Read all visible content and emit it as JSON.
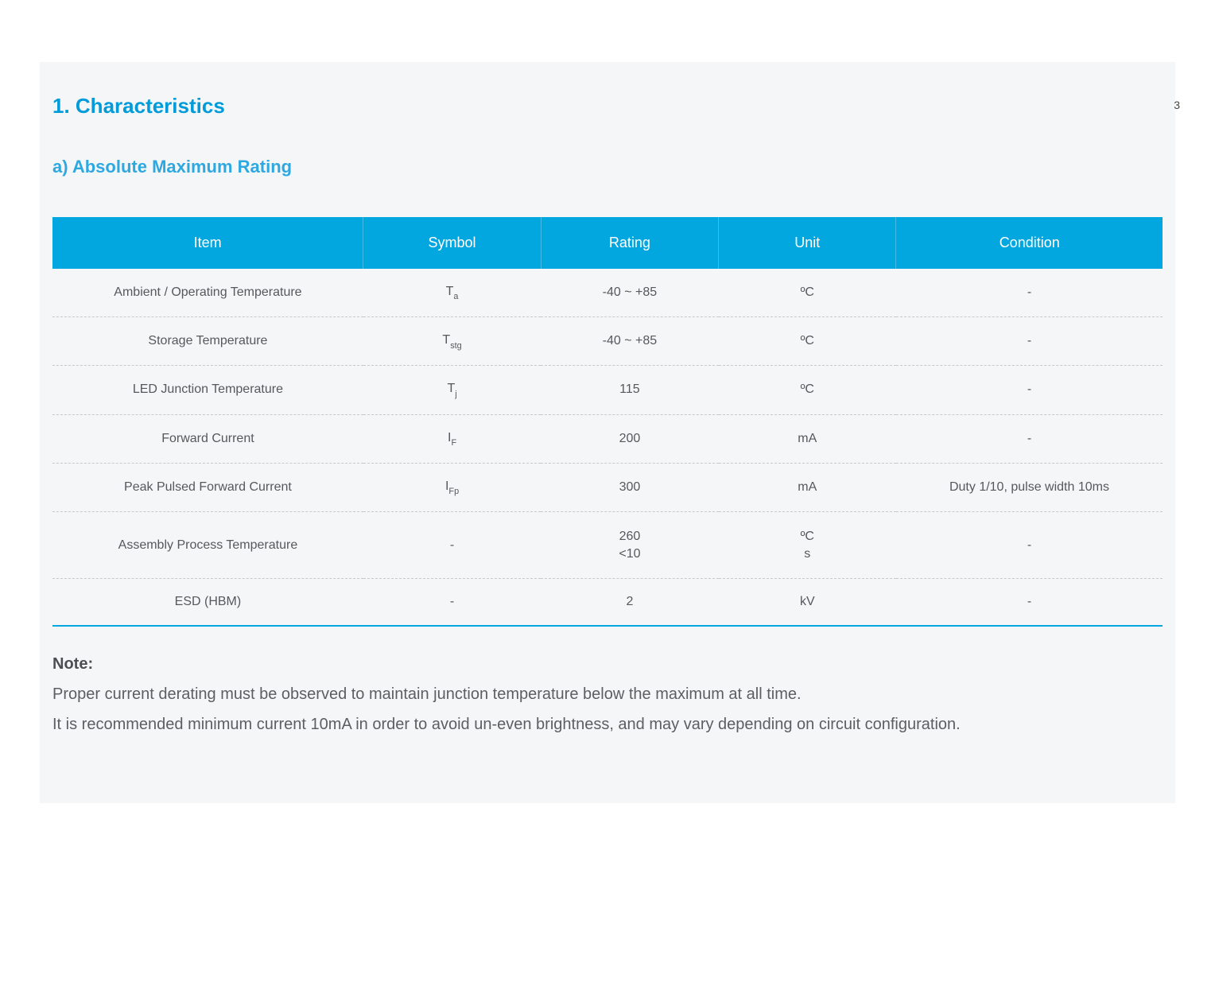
{
  "page_number": "3",
  "heading_1": "1.  Characteristics",
  "heading_2": "a)  Absolute Maximum Rating",
  "colors": {
    "accent": "#02a7df",
    "heading": "#009bd8",
    "subheading": "#2ea8e0",
    "page_bg": "#ffffff",
    "panel_bg": "#f5f6f7",
    "cell_text": "#55595c",
    "header_text": "#ffffff",
    "row_divider": "#c7c9cb"
  },
  "table": {
    "columns": [
      "Item",
      "Symbol",
      "Rating",
      "Unit",
      "Condition"
    ],
    "rows": [
      {
        "item": "Ambient / Operating Temperature",
        "symbol_main": "T",
        "symbol_sub": "a",
        "rating": "-40 ~ +85",
        "unit": "ºC",
        "condition": "-"
      },
      {
        "item": "Storage Temperature",
        "symbol_main": "T",
        "symbol_sub": "stg",
        "rating": "-40 ~ +85",
        "unit": "ºC",
        "condition": "-"
      },
      {
        "item": "LED Junction Temperature",
        "symbol_main": "T",
        "symbol_sub": "j",
        "rating": "115",
        "unit": "ºC",
        "condition": "-"
      },
      {
        "item": "Forward Current",
        "symbol_main": "I",
        "symbol_sub": "F",
        "rating": "200",
        "unit": "mA",
        "condition": "-"
      },
      {
        "item": "Peak Pulsed Forward Current",
        "symbol_main": "I",
        "symbol_sub": "Fp",
        "rating": "300",
        "unit": "mA",
        "condition": "Duty 1/10, pulse width 10ms"
      },
      {
        "item": "Assembly Process Temperature",
        "symbol_main": "-",
        "symbol_sub": "",
        "rating_line1": "260",
        "rating_line2": "<10",
        "unit_line1": "ºC",
        "unit_line2": "s",
        "condition": "-"
      },
      {
        "item": "ESD (HBM)",
        "symbol_main": "-",
        "symbol_sub": "",
        "rating": "2",
        "unit": "kV",
        "condition": "-"
      }
    ]
  },
  "note": {
    "title": "Note:",
    "line1": "Proper current derating must be observed to maintain junction temperature below the maximum at all time.",
    "line2": "It is recommended minimum current 10mA in order to avoid un-even brightness, and may vary depending on circuit configuration."
  }
}
